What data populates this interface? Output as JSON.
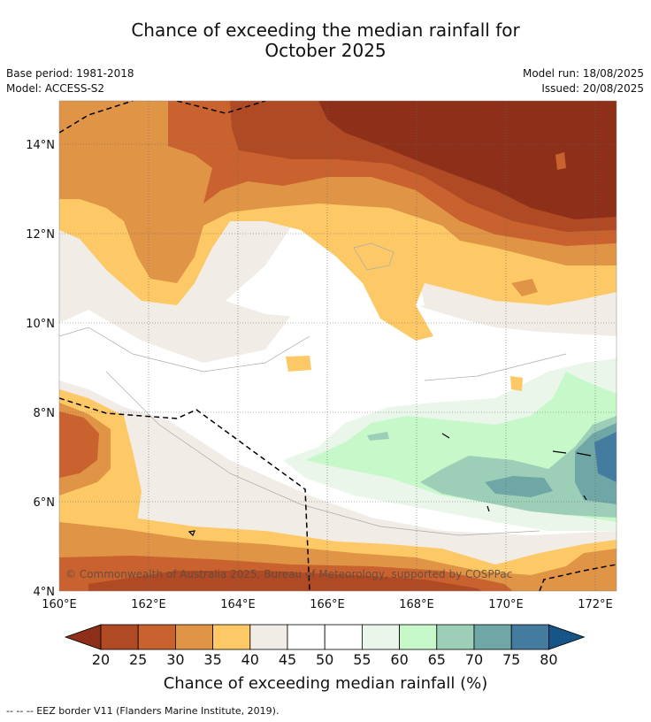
{
  "title_line1": "Chance of exceeding the median rainfall for",
  "title_line2": "October 2025",
  "base_period": "Base period: 1981-2018",
  "model": "Model: ACCESS-S2",
  "model_run": "Model run: 18/08/2025",
  "issued": "Issued: 20/08/2025",
  "copyright": "© Commonwealth of Australia 2025, Bureau of Meteorology, supported by COSPPac",
  "y_ticks": [
    "14°N",
    "12°N",
    "10°N",
    "8°N",
    "6°N",
    "4°N"
  ],
  "x_ticks": [
    "160°E",
    "162°E",
    "164°E",
    "166°E",
    "168°E",
    "170°E",
    "172°E"
  ],
  "colorbar": {
    "title": "Chance of exceeding median rainfall (%)",
    "labels": [
      "20",
      "25",
      "30",
      "35",
      "40",
      "45",
      "50",
      "55",
      "60",
      "65",
      "70",
      "75",
      "80"
    ],
    "colors": [
      "#8e3019",
      "#b04a24",
      "#c9622e",
      "#e09446",
      "#fcc966",
      "#f1ece6",
      "#ffffff",
      "#ffffff",
      "#eaf6ea",
      "#c6f8c9",
      "#9dceb8",
      "#6fa6a6",
      "#447c9f",
      "#175487"
    ]
  },
  "footer": "--  --  -- EEZ border V11 (Flanders Marine Institute, 2019)."
}
